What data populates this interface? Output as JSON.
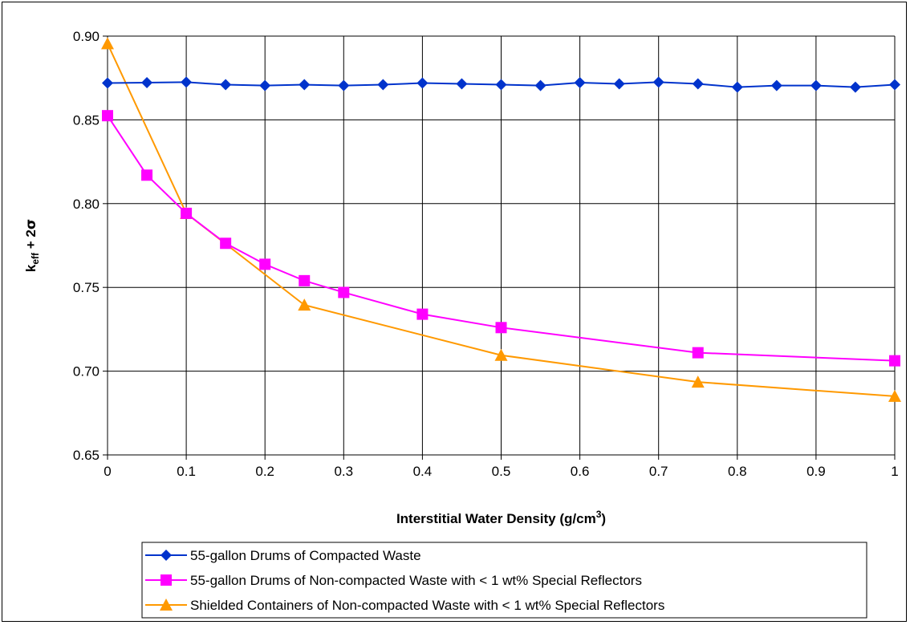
{
  "chart_data": {
    "type": "line",
    "title": "",
    "xlabel": "Interstitial Water Density (g/cm",
    "xlabel_sup": "3",
    "xlabel_end": ")",
    "ylabel_main": "k",
    "ylabel_sub": "eff",
    "ylabel_rest": " + 2",
    "ylabel_sigma": "σ",
    "xlim": [
      0,
      1
    ],
    "ylim": [
      0.65,
      0.9
    ],
    "xticks": [
      "0",
      "0.1",
      "0.2",
      "0.3",
      "0.4",
      "0.5",
      "0.6",
      "0.7",
      "0.8",
      "0.9",
      "1"
    ],
    "yticks": [
      "0.65",
      "0.70",
      "0.75",
      "0.80",
      "0.85",
      "0.90"
    ],
    "grid": true,
    "legend_position": "bottom",
    "series": [
      {
        "name": "55-gallon Drums of Compacted Waste",
        "color": "#0033CC",
        "marker": "diamond",
        "x": [
          0,
          0.05,
          0.1,
          0.15,
          0.2,
          0.25,
          0.3,
          0.35,
          0.4,
          0.45,
          0.5,
          0.55,
          0.6,
          0.65,
          0.7,
          0.75,
          0.8,
          0.85,
          0.9,
          0.95,
          1
        ],
        "y": [
          0.872,
          0.8722,
          0.8725,
          0.871,
          0.8705,
          0.871,
          0.8705,
          0.871,
          0.872,
          0.8715,
          0.871,
          0.8705,
          0.8722,
          0.8715,
          0.8725,
          0.8715,
          0.8695,
          0.8705,
          0.8705,
          0.8695,
          0.871
        ]
      },
      {
        "name": "55-gallon Drums of Non-compacted Waste with < 1 wt% Special Reflectors",
        "color": "#FF00FF",
        "marker": "square",
        "x": [
          0,
          0.05,
          0.1,
          0.15,
          0.2,
          0.25,
          0.3,
          0.4,
          0.5,
          0.75,
          1
        ],
        "y": [
          0.8525,
          0.817,
          0.7942,
          0.7763,
          0.7638,
          0.754,
          0.747,
          0.734,
          0.726,
          0.711,
          0.7062
        ]
      },
      {
        "name": "Shielded Containers of Non-compacted Waste with < 1 wt% Special Reflectors",
        "color": "#FF9900",
        "marker": "triangle",
        "x": [
          0,
          0.1,
          0.25,
          0.5,
          0.75,
          1
        ],
        "y": [
          0.8955,
          0.7942,
          0.7395,
          0.7095,
          0.6935,
          0.685
        ]
      }
    ]
  }
}
